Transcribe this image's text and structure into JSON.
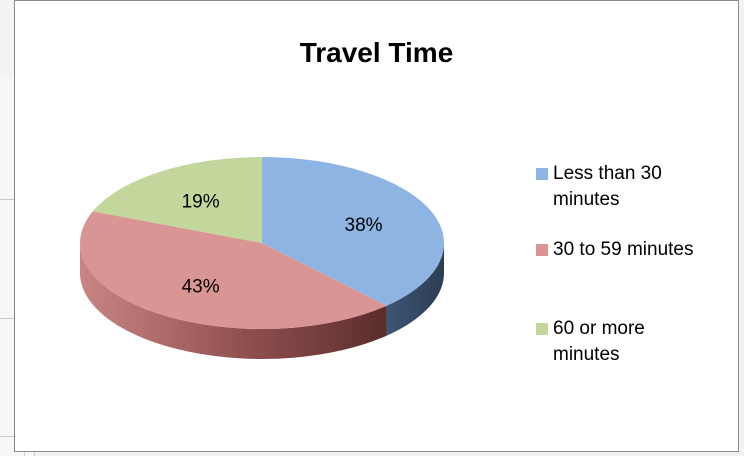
{
  "chart_data": {
    "type": "pie",
    "title": "Travel Time",
    "categories": [
      "Less than 30 minutes",
      "30 to 59 minutes",
      "60 or more minutes"
    ],
    "values": [
      38,
      43,
      19
    ],
    "data_labels": [
      "38%",
      "43%",
      "19%"
    ],
    "colors": [
      "#8eb4e3",
      "#d99594",
      "#c3d69b"
    ],
    "side_colors": [
      "#33475f",
      "#7d3b3b",
      "#6b7f3e"
    ],
    "legend_position": "right",
    "style": "3d"
  },
  "legend": {
    "items": [
      {
        "line1": "Less than 30",
        "line2": "minutes"
      },
      {
        "line1": "30 to 59 minutes",
        "line2": ""
      },
      {
        "line1": "60 or more",
        "line2": "minutes"
      }
    ]
  }
}
